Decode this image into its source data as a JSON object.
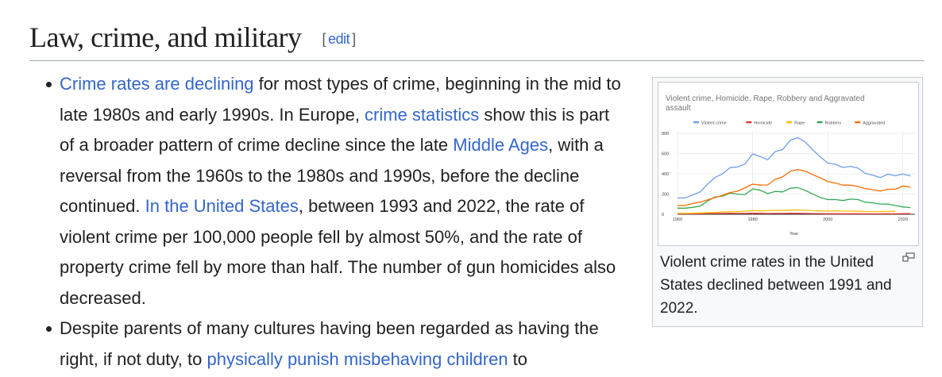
{
  "heading": {
    "title": "Law, crime, and military",
    "edit_open": "[",
    "edit_label": "edit",
    "edit_close": "]"
  },
  "items": [
    {
      "segments": [
        {
          "text": "Crime rates are declining",
          "link": true
        },
        {
          "text": " for most types of crime, beginning in the mid to late 1980s and early 1990s. In Europe, ",
          "link": false
        },
        {
          "text": "crime statistics",
          "link": true
        },
        {
          "text": " show this is part of a broader pattern of crime decline since the late ",
          "link": false
        },
        {
          "text": "Middle Ages",
          "link": true
        },
        {
          "text": ", with a reversal from the 1960s to the 1980s and 1990s, before the decline continued. ",
          "link": false
        },
        {
          "text": "In the United States",
          "link": true
        },
        {
          "text": ", between 1993 and 2022, the rate of violent crime per 100,000 people fell by almost 50%, and the rate of property crime fell by more than half. The number of gun homicides also decreased.",
          "link": false
        }
      ]
    },
    {
      "segments": [
        {
          "text": "Despite parents of many cultures having been regarded as having the right, if not duty, to ",
          "link": false
        },
        {
          "text": "physically punish misbehaving children",
          "link": true
        },
        {
          "text": " to",
          "link": false
        }
      ]
    }
  ],
  "figure": {
    "caption": "Violent crime rates in the United States declined between 1991 and 2022.",
    "enlarge_icon": "magnify-clip-icon"
  },
  "chart_data": {
    "type": "line",
    "title": "Violent crime, Homicide, Rape, Robbery and Aggravated assault",
    "xlabel": "Year",
    "ylabel": "",
    "xlim": [
      1960,
      2022
    ],
    "ylim": [
      0,
      800
    ],
    "xticks": [
      "1960",
      "1980",
      "2000",
      "2020"
    ],
    "yticks": [
      "0",
      "200",
      "400",
      "600",
      "800"
    ],
    "grid": true,
    "legend": "top",
    "x": [
      1960,
      1962,
      1964,
      1966,
      1968,
      1970,
      1972,
      1974,
      1976,
      1978,
      1980,
      1982,
      1984,
      1986,
      1988,
      1990,
      1992,
      1994,
      1996,
      1998,
      2000,
      2002,
      2004,
      2006,
      2008,
      2010,
      2012,
      2014,
      2016,
      2018,
      2020,
      2022
    ],
    "series": [
      {
        "name": "Violent crime",
        "color": "#6d9eeb",
        "values": [
          161,
          162,
          190,
          220,
          298,
          364,
          401,
          461,
          468,
          498,
          597,
          571,
          539,
          620,
          640,
          732,
          758,
          714,
          637,
          568,
          507,
          494,
          463,
          474,
          458,
          404,
          387,
          362,
          397,
          381,
          398,
          380
        ]
      },
      {
        "name": "Homicide",
        "color": "#e53935",
        "values": [
          5.1,
          4.6,
          4.9,
          5.6,
          6.9,
          7.9,
          9.0,
          9.8,
          8.8,
          9.0,
          10.2,
          9.1,
          7.9,
          8.6,
          8.4,
          9.4,
          9.3,
          9.0,
          7.4,
          6.3,
          5.5,
          5.6,
          5.5,
          5.8,
          5.4,
          4.8,
          4.7,
          4.4,
          5.4,
          5.0,
          6.5,
          6.3
        ]
      },
      {
        "name": "Rape",
        "color": "#fbbc04",
        "values": [
          9.6,
          9.4,
          11.2,
          13.2,
          15.9,
          18.7,
          22.5,
          26.2,
          26.6,
          31,
          36.8,
          34,
          35.7,
          37.9,
          37.6,
          41.1,
          42.8,
          39.3,
          36.3,
          34.5,
          32,
          33.1,
          32.4,
          31.6,
          29.8,
          27.7,
          27.1,
          26.6,
          28,
          30,
          null,
          null
        ]
      },
      {
        "name": "Robbery",
        "color": "#34a853",
        "values": [
          60,
          60,
          68,
          81,
          131,
          172,
          180,
          209,
          199,
          195,
          251,
          238,
          205,
          226,
          221,
          257,
          264,
          237,
          201,
          166,
          145,
          146,
          136,
          150,
          146,
          119,
          113,
          101,
          102,
          86,
          73,
          66
        ]
      },
      {
        "name": "Aggravated",
        "color": "#ff6d01",
        "values": [
          86,
          88,
          106,
          120,
          143,
          165,
          188,
          215,
          228,
          262,
          298,
          289,
          290,
          346,
          370,
          424,
          442,
          427,
          391,
          361,
          324,
          309,
          289,
          288,
          275,
          253,
          243,
          230,
          248,
          247,
          279,
          268
        ]
      }
    ]
  }
}
